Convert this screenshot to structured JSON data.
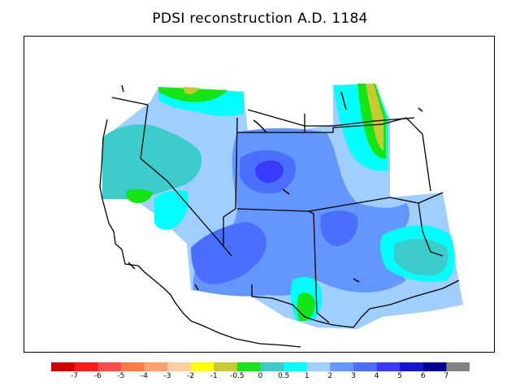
{
  "title": "PDSI reconstruction A.D. 1184",
  "legend": {
    "colors": [
      "#d40000",
      "#ff1a1a",
      "#ff4a4a",
      "#ff7a44",
      "#ffa070",
      "#ffce9c",
      "#ffff00",
      "#c8c832",
      "#14e614",
      "#3ccccc",
      "#00ffff",
      "#a0ceff",
      "#6496ff",
      "#4a6eff",
      "#3a3aff",
      "#1414d2",
      "#000096",
      "#828282"
    ],
    "labels": [
      "-7",
      "-6",
      "-5",
      "-4",
      "-3",
      "-2",
      "-1",
      "-0.5",
      "0",
      "0.5",
      "1",
      "2",
      "3",
      "4",
      "5",
      "6",
      "7"
    ]
  },
  "palette": {
    "light_blue": "#a0ceff",
    "medium_blue": "#6496ff",
    "blue": "#4a6eff",
    "deep_blue": "#3a3aff",
    "teal": "#3ccccc",
    "cyan": "#00ffff",
    "green": "#14e614",
    "olive": "#c8c832"
  }
}
